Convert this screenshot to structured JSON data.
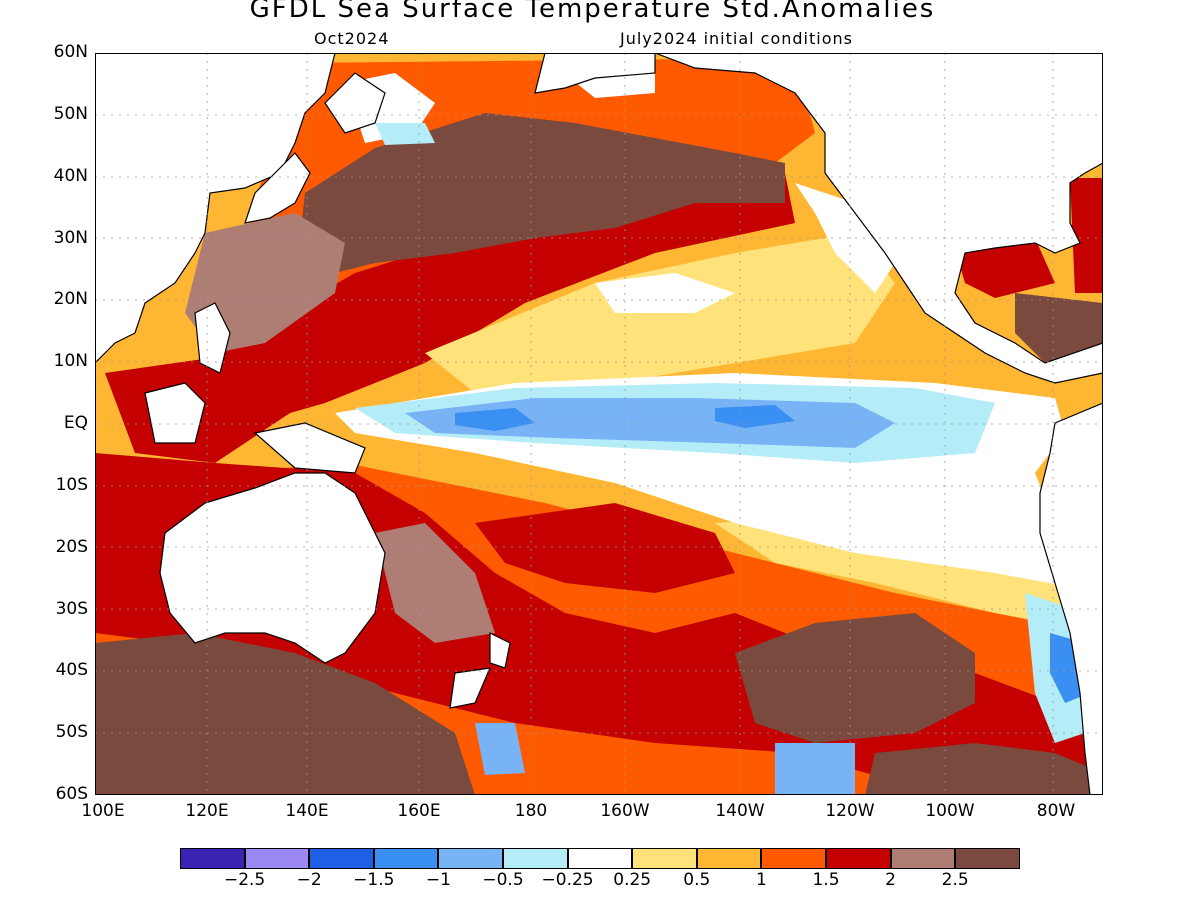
{
  "title": "GFDL Sea Surface Temperature Std.Anomalies",
  "subtitle_left": "Oct2024",
  "subtitle_right": "July2024 initial conditions",
  "lat_labels": [
    "60N",
    "50N",
    "40N",
    "30N",
    "20N",
    "10N",
    "EQ",
    "10S",
    "20S",
    "30S",
    "40S",
    "50S",
    "60S"
  ],
  "lon_labels": [
    "100E",
    "120E",
    "140E",
    "160E",
    "180",
    "160W",
    "140W",
    "120W",
    "100W",
    "80W"
  ],
  "colorbar": {
    "colors": [
      "#3a22b3",
      "#9b88f2",
      "#1e5fe6",
      "#3a8ff2",
      "#78b4f5",
      "#b4ecf8",
      "#ffffff",
      "#ffe27a",
      "#ffb733",
      "#ff5a00",
      "#c40000",
      "#ae7e74",
      "#7a4a3e"
    ],
    "labels": [
      "−2.5",
      "−2",
      "−1.5",
      "−1",
      "−0.5",
      "−0.25",
      "0.25",
      "0.5",
      "1",
      "1.5",
      "2",
      "2.5"
    ]
  },
  "colors": {
    "ocean_base": "#ffb733",
    "land": "#ffffff",
    "coast": "#000000",
    "grid": "#999999"
  }
}
